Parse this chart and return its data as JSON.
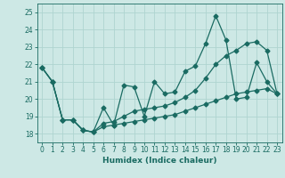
{
  "xlabel": "Humidex (Indice chaleur)",
  "xlim": [
    -0.5,
    23.5
  ],
  "ylim": [
    17.5,
    25.5
  ],
  "yticks": [
    18,
    19,
    20,
    21,
    22,
    23,
    24,
    25
  ],
  "xticks": [
    0,
    1,
    2,
    3,
    4,
    5,
    6,
    7,
    8,
    9,
    10,
    11,
    12,
    13,
    14,
    15,
    16,
    17,
    18,
    19,
    20,
    21,
    22,
    23
  ],
  "bg_color": "#cde8e5",
  "grid_color": "#afd4d0",
  "line_color": "#1a6b62",
  "line1_y": [
    21.8,
    21.0,
    18.8,
    18.8,
    18.2,
    18.1,
    19.5,
    18.5,
    20.8,
    20.7,
    19.0,
    21.0,
    20.3,
    20.4,
    21.6,
    21.9,
    23.2,
    24.8,
    23.4,
    20.0,
    20.1,
    22.1,
    21.0,
    20.3
  ],
  "line2_y": [
    21.8,
    21.0,
    18.8,
    18.8,
    18.2,
    18.1,
    18.6,
    18.7,
    19.0,
    19.3,
    19.4,
    19.5,
    19.6,
    19.8,
    20.1,
    20.5,
    21.2,
    22.0,
    22.5,
    22.8,
    23.2,
    23.3,
    22.8,
    20.3
  ],
  "line3_y": [
    21.8,
    21.0,
    18.8,
    18.8,
    18.2,
    18.1,
    18.4,
    18.5,
    18.6,
    18.7,
    18.8,
    18.9,
    19.0,
    19.1,
    19.3,
    19.5,
    19.7,
    19.9,
    20.1,
    20.3,
    20.4,
    20.5,
    20.6,
    20.3
  ]
}
